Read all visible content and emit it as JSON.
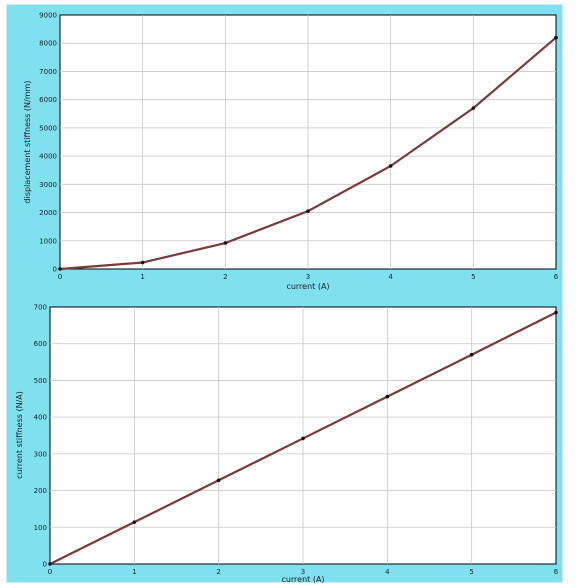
{
  "colors": {
    "background": "#7fe0f0",
    "plot_background": "#ffffff",
    "series_line": "#7a3a3a",
    "markers": "#111111"
  },
  "chart_data": [
    {
      "type": "line",
      "xlabel": "current (A)",
      "ylabel": "displacement stiffness (N/mm)",
      "xlim": [
        0,
        6
      ],
      "ylim": [
        0,
        9000
      ],
      "x_ticks": [
        0,
        1,
        2,
        3,
        4,
        5,
        6
      ],
      "y_ticks": [
        0,
        1000,
        2000,
        3000,
        4000,
        5000,
        6000,
        7000,
        8000,
        9000
      ],
      "x_tick_labels": [
        "0",
        "1",
        "2",
        "3",
        "4",
        "5",
        "6"
      ],
      "y_tick_labels": [
        "0",
        "1000",
        "2000",
        "3000",
        "4000",
        "5000",
        "6000",
        "7000",
        "8000",
        "9000"
      ],
      "grid": true,
      "series": [
        {
          "x": [
            0,
            1,
            2,
            3,
            4,
            5,
            6
          ],
          "values": [
            0,
            230,
            920,
            2050,
            3650,
            5700,
            8200
          ]
        }
      ]
    },
    {
      "type": "line",
      "xlabel": "current (A)",
      "ylabel": "current stiffness (N/A)",
      "xlim": [
        0,
        6
      ],
      "ylim": [
        0,
        700
      ],
      "x_ticks": [
        0,
        1,
        2,
        3,
        4,
        5,
        6
      ],
      "y_ticks": [
        0,
        100,
        200,
        300,
        400,
        500,
        600,
        700
      ],
      "x_tick_labels": [
        "0",
        "1",
        "2",
        "3",
        "4",
        "5",
        "6"
      ],
      "y_tick_labels": [
        "0",
        "100",
        "200",
        "300",
        "400",
        "500",
        "600",
        "700"
      ],
      "grid": true,
      "series": [
        {
          "x": [
            0,
            1,
            2,
            3,
            4,
            5,
            6
          ],
          "values": [
            0,
            114,
            228,
            342,
            456,
            570,
            685
          ]
        }
      ]
    }
  ]
}
